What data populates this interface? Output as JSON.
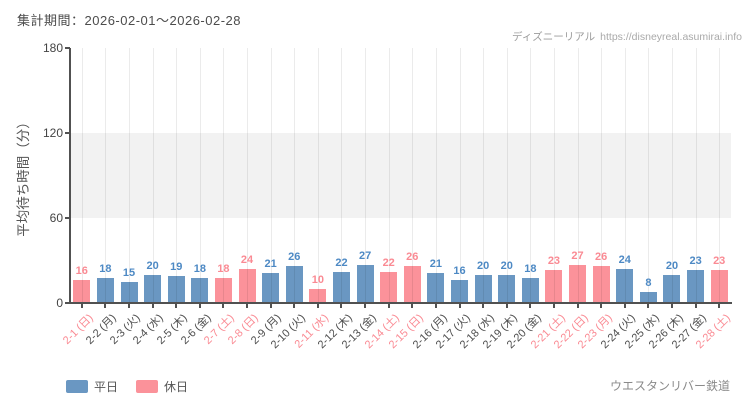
{
  "header": {
    "period": "集計期間：2026-02-01～2026-02-28"
  },
  "watermark": {
    "brand": "ディズニーリアル",
    "url": "https://disneyreal.asumirai.info"
  },
  "legend": {
    "weekday_label": "平日",
    "holiday_label": "休日"
  },
  "footer": {
    "attraction": "ウエスタンリバー鉄道"
  },
  "colors": {
    "weekday_bar": "#6a97c2",
    "holiday_bar": "#fb929a",
    "weekday_value_text": "#4d89c4",
    "holiday_value_text": "#fa8a93",
    "weekday_axis_label": "#4d4d4d",
    "holiday_axis_label": "#fa8a93",
    "axis_line": "#515151",
    "band_fill": "#f2f2f2"
  },
  "chart_data": {
    "type": "bar",
    "ylabel": "平均待ち時間（分）",
    "xlabel": "",
    "ylim": [
      0,
      180
    ],
    "yticks": [
      0,
      60,
      120,
      180
    ],
    "shaded_band_y": [
      60,
      120
    ],
    "grid": "vertical",
    "legend_position": "bottom-left",
    "categories": [
      "2-1 (日)",
      "2-2 (月)",
      "2-3 (火)",
      "2-4 (水)",
      "2-5 (木)",
      "2-6 (金)",
      "2-7 (土)",
      "2-8 (日)",
      "2-9 (月)",
      "2-10 (火)",
      "2-11 (水)",
      "2-12 (木)",
      "2-13 (金)",
      "2-14 (土)",
      "2-15 (日)",
      "2-16 (月)",
      "2-17 (火)",
      "2-18 (水)",
      "2-19 (木)",
      "2-20 (金)",
      "2-21 (土)",
      "2-22 (日)",
      "2-23 (月)",
      "2-24 (火)",
      "2-25 (水)",
      "2-26 (木)",
      "2-27 (金)",
      "2-28 (土)"
    ],
    "values": [
      16,
      18,
      15,
      20,
      19,
      18,
      18,
      24,
      21,
      26,
      10,
      22,
      27,
      22,
      26,
      21,
      16,
      20,
      20,
      18,
      23,
      27,
      26,
      24,
      8,
      20,
      23,
      23
    ],
    "day_types": [
      "holiday",
      "weekday",
      "weekday",
      "weekday",
      "weekday",
      "weekday",
      "holiday",
      "holiday",
      "weekday",
      "weekday",
      "holiday",
      "weekday",
      "weekday",
      "holiday",
      "holiday",
      "weekday",
      "weekday",
      "weekday",
      "weekday",
      "weekday",
      "holiday",
      "holiday",
      "holiday",
      "weekday",
      "weekday",
      "weekday",
      "weekday",
      "holiday"
    ]
  }
}
